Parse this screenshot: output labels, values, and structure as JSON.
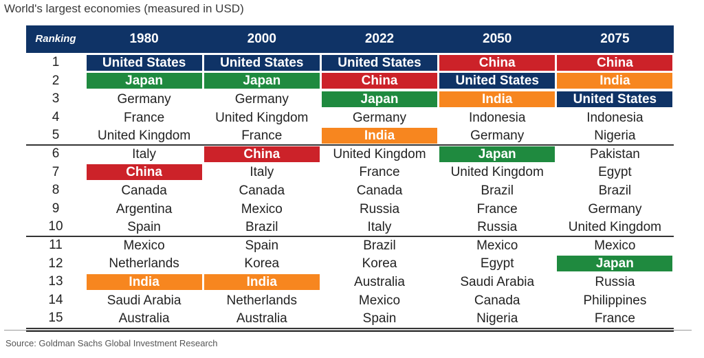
{
  "title": "World's largest economies (measured in USD)",
  "source": "Source: Goldman Sachs Global Investment Research",
  "colors": {
    "header_bg": "#0f3366",
    "United States": "#0f3366",
    "China": "#cc2229",
    "Japan": "#1f8a3f",
    "India": "#f7861f"
  },
  "chart_data": {
    "type": "table",
    "title": "World's largest economies (measured in USD)",
    "columns": [
      "Ranking",
      "1980",
      "2000",
      "2022",
      "2050",
      "2075"
    ],
    "ranks": [
      "1",
      "2",
      "3",
      "4",
      "5",
      "6",
      "7",
      "8",
      "9",
      "10",
      "11",
      "12",
      "13",
      "14",
      "15"
    ],
    "rankings": {
      "1980": [
        "United States",
        "Japan",
        "Germany",
        "France",
        "United Kingdom",
        "Italy",
        "China",
        "Canada",
        "Argentina",
        "Spain",
        "Mexico",
        "Netherlands",
        "India",
        "Saudi Arabia",
        "Australia"
      ],
      "2000": [
        "United States",
        "Japan",
        "Germany",
        "United Kingdom",
        "France",
        "China",
        "Italy",
        "Canada",
        "Mexico",
        "Brazil",
        "Spain",
        "Korea",
        "India",
        "Netherlands",
        "Australia"
      ],
      "2022": [
        "United States",
        "China",
        "Japan",
        "Germany",
        "India",
        "United Kingdom",
        "France",
        "Canada",
        "Russia",
        "Italy",
        "Brazil",
        "Korea",
        "Australia",
        "Mexico",
        "Spain"
      ],
      "2050": [
        "China",
        "United States",
        "India",
        "Indonesia",
        "Germany",
        "Japan",
        "United Kingdom",
        "Brazil",
        "France",
        "Russia",
        "Mexico",
        "Egypt",
        "Saudi Arabia",
        "Canada",
        "Nigeria"
      ],
      "2075": [
        "China",
        "India",
        "United States",
        "Indonesia",
        "Nigeria",
        "Pakistan",
        "Egypt",
        "Brazil",
        "Germany",
        "United Kingdom",
        "Mexico",
        "Japan",
        "Russia",
        "Philippines",
        "France"
      ]
    },
    "highlighted_countries": [
      "United States",
      "China",
      "Japan",
      "India"
    ]
  }
}
